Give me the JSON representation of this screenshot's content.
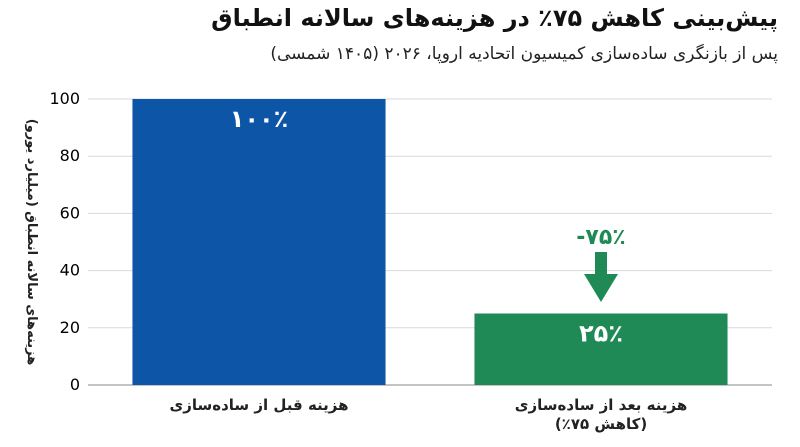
{
  "title": "پیش‌بینی کاهش ۷۵٪ در هزینه‌های سالانه انطباق",
  "subtitle": "پس از بازنگری ساده‌سازی کمیسیون اتحادیه اروپا، ۲۰۲۶ (۱۴۰۵ شمسی)",
  "chart_data": {
    "type": "bar",
    "categories": [
      "هزینه قبل از ساده‌سازی",
      "هزینه بعد از ساده‌سازی\n(کاهش ۷۵٪)"
    ],
    "values": [
      100,
      25
    ],
    "value_labels": [
      "۱۰۰٪",
      "۲۵٪"
    ],
    "bar_colors": [
      "#0d55a6",
      "#1f8a55"
    ],
    "ylabel": "هزینه‌های سالانه انطباق (میلیارد یورو)",
    "ylim": [
      0,
      100
    ],
    "yticks": [
      0,
      20,
      40,
      60,
      80,
      100
    ],
    "grid": "horizontal",
    "annotation": {
      "text": "-۷۵٪",
      "color": "#1f8a55",
      "arrow": "down",
      "category_index": 1
    }
  }
}
